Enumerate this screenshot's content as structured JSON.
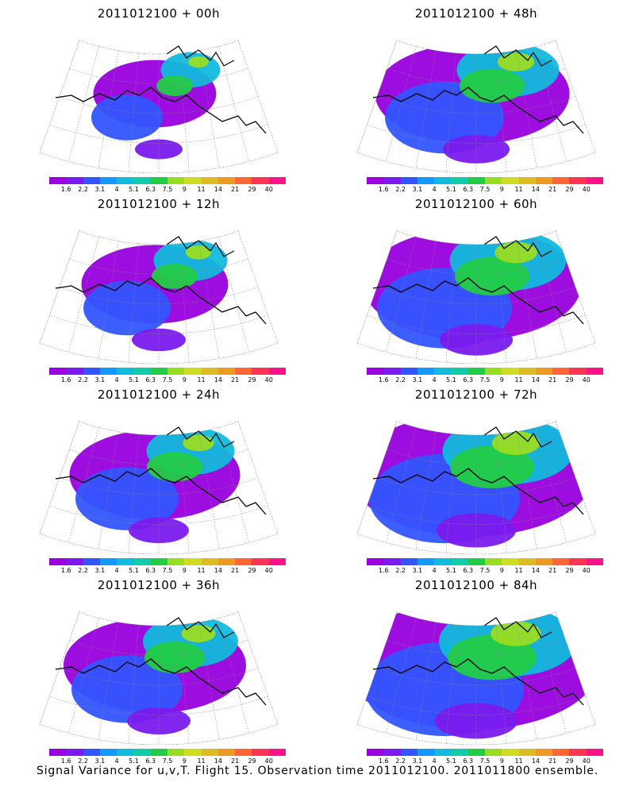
{
  "panels": [
    {
      "title": "2011012100 + 00h",
      "level": 0.25
    },
    {
      "title": "2011012100 + 48h",
      "level": 0.55
    },
    {
      "title": "2011012100 + 12h",
      "level": 0.35
    },
    {
      "title": "2011012100 + 60h",
      "level": 0.65
    },
    {
      "title": "2011012100 + 24h",
      "level": 0.45
    },
    {
      "title": "2011012100 + 72h",
      "level": 0.75
    },
    {
      "title": "2011012100 + 36h",
      "level": 0.5
    },
    {
      "title": "2011012100 + 84h",
      "level": 0.8
    }
  ],
  "colorbar": {
    "colors": [
      "#9900dd",
      "#7a1aee",
      "#3355ff",
      "#1199ff",
      "#11bbdd",
      "#11ccaa",
      "#22cc44",
      "#99dd22",
      "#ccdd22",
      "#ddbb22",
      "#ee9922",
      "#ff6633",
      "#ff3355",
      "#ff1188"
    ],
    "labels": [
      "1.6",
      "2.2",
      "3.1",
      "4",
      "5.1",
      "6.3",
      "7.5",
      "9",
      "11",
      "14",
      "21",
      "29",
      "40"
    ]
  },
  "caption": "Signal Variance for u,v,T. Flight 15. Observation time 2011012100. 2011011800 ensemble."
}
